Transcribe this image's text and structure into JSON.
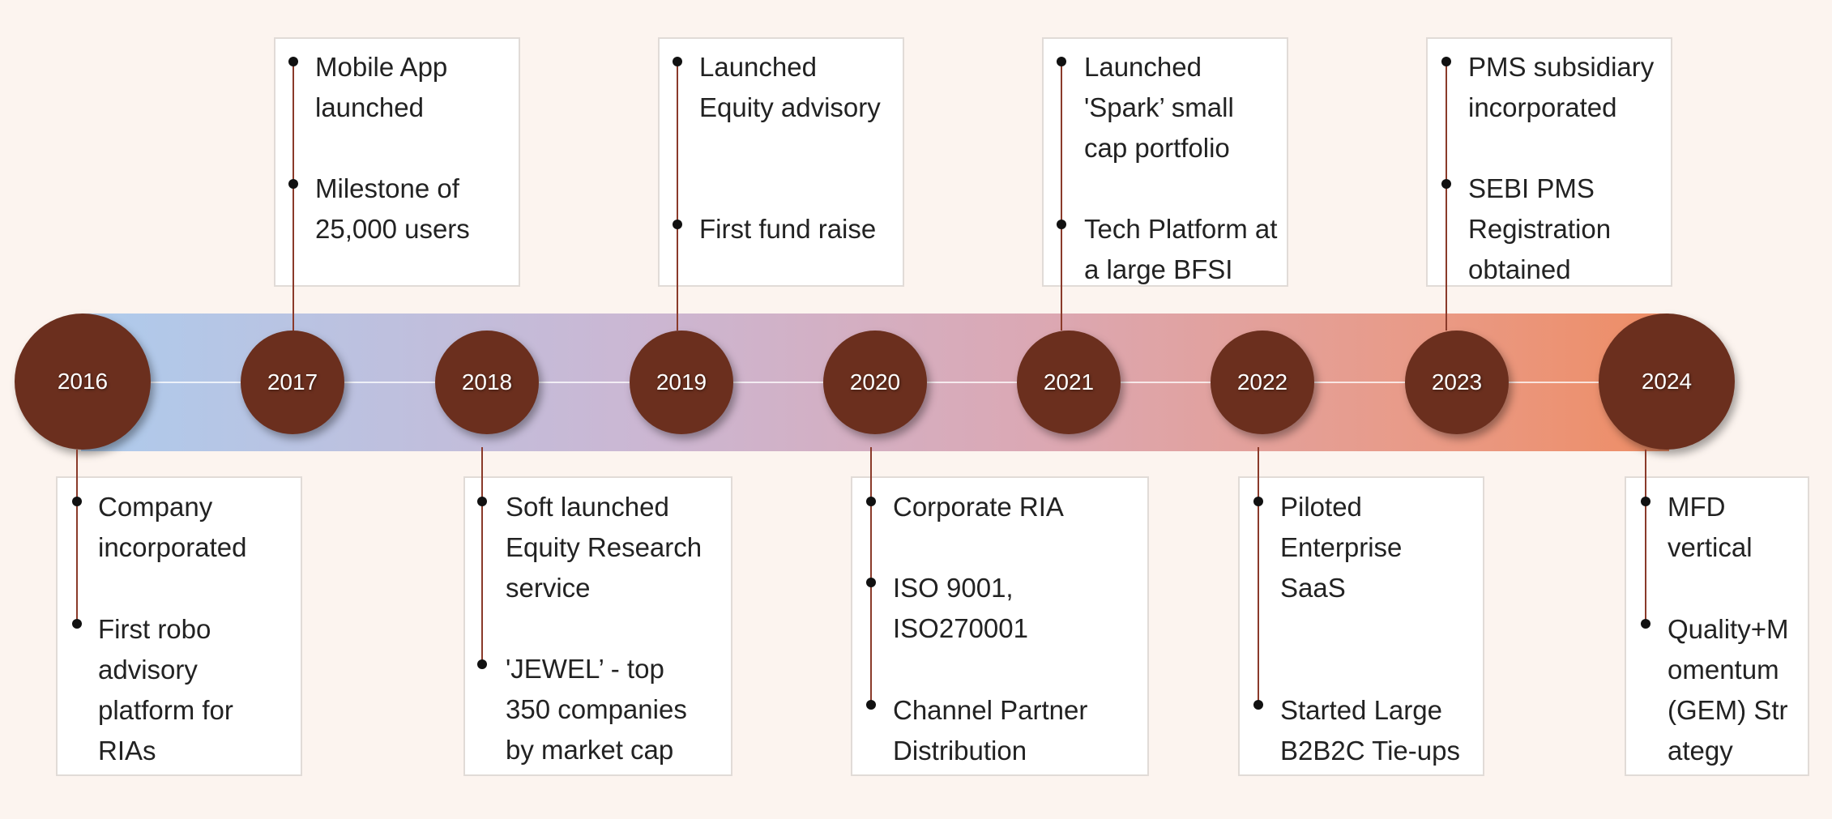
{
  "milestones": [
    {
      "year": "2016",
      "events": [
        "Company incorporated",
        "First robo advisory platform for RIAs"
      ]
    },
    {
      "year": "2017",
      "events": [
        "Mobile App launched",
        "Milestone of 25,000 users"
      ]
    },
    {
      "year": "2018",
      "events": [
        "Soft launched Equity Research service",
        "'JEWEL’ - top 350 companies by market cap"
      ]
    },
    {
      "year": "2019",
      "events": [
        "Launched Equity advisory",
        "First fund raise"
      ]
    },
    {
      "year": "2020",
      "events": [
        "Corporate RIA",
        "ISO 9001, ISO270001",
        "Channel Partner Distribution"
      ]
    },
    {
      "year": "2021",
      "events": [
        "Launched 'Spark’ small cap portfolio",
        "Tech Platform at a large BFSI"
      ]
    },
    {
      "year": "2022",
      "events": [
        "Piloted Enterprise SaaS",
        "Started Large B2B2C Tie-ups"
      ]
    },
    {
      "year": "2023",
      "events": [
        "PMS subsidiary incorporated",
        "SEBI PMS Registration obtained"
      ]
    },
    {
      "year": "2024",
      "events": [
        "MFD vertical",
        "Quality+Momentum (GEM) Strategy"
      ]
    }
  ],
  "colors": {
    "node": "#6b2f1e",
    "connector": "#8a3a2a",
    "band_start": "#aecbec",
    "band_end": "#ee8d65",
    "background": "#fcf4ef"
  }
}
